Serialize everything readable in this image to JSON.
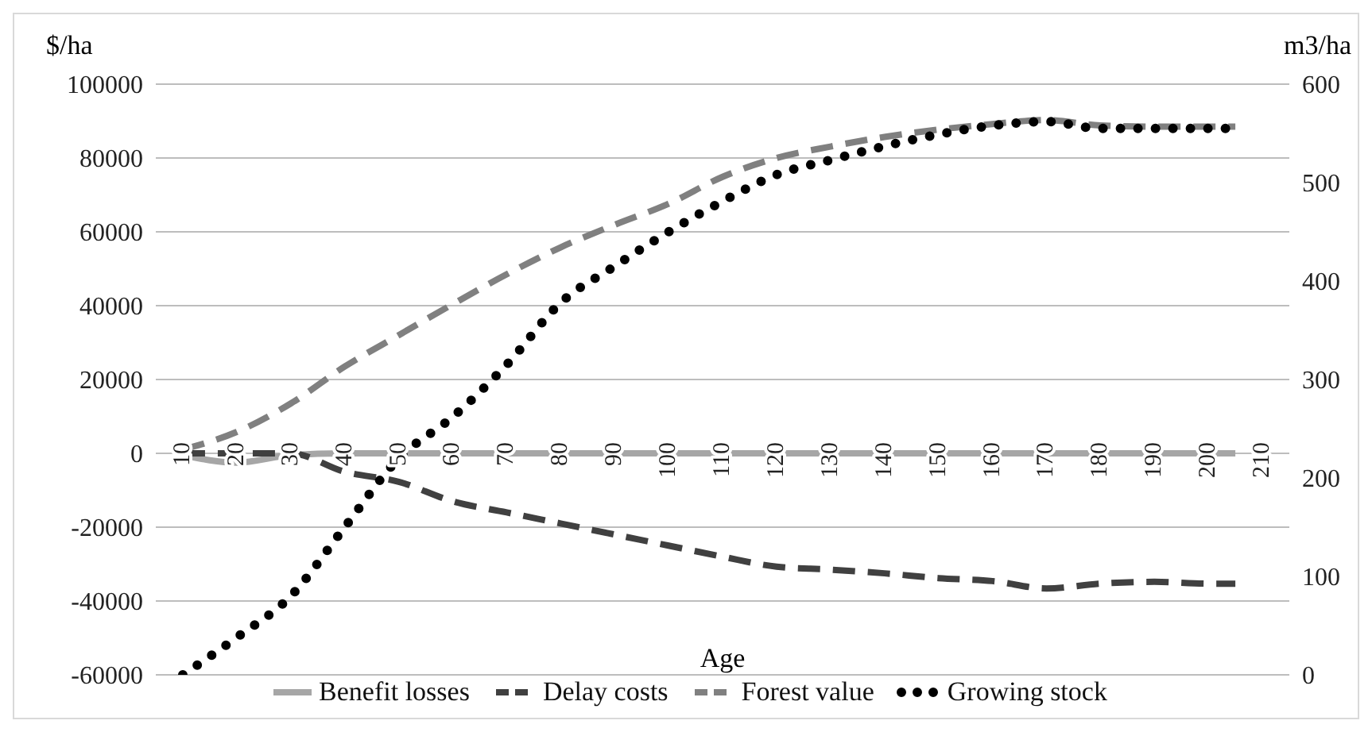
{
  "chart_data": {
    "type": "line",
    "xlabel": "Age",
    "ylabel": "$/ha",
    "y2label": "m3/ha",
    "x": [
      10,
      20,
      30,
      40,
      50,
      60,
      70,
      80,
      90,
      100,
      110,
      120,
      130,
      140,
      150,
      160,
      170,
      180,
      190,
      200,
      205
    ],
    "xlim": [
      5,
      215
    ],
    "xticks": [
      10,
      20,
      30,
      40,
      50,
      60,
      70,
      80,
      90,
      100,
      110,
      120,
      130,
      140,
      150,
      160,
      170,
      180,
      190,
      200,
      210
    ],
    "ylim": [
      -60000,
      100000
    ],
    "yticks": [
      -60000,
      -40000,
      -20000,
      0,
      20000,
      40000,
      60000,
      80000,
      100000
    ],
    "y2lim": [
      0,
      600
    ],
    "y2ticks": [
      0,
      100,
      200,
      300,
      400,
      500,
      600
    ],
    "grid": "y",
    "legend": "bottom",
    "marker": "none",
    "series": [
      {
        "name": "Benefit losses",
        "color": "#a6a6a6",
        "line_style": "solid",
        "values": [
          -500,
          -2500,
          -500,
          0,
          0,
          0,
          0,
          0,
          0,
          0,
          0,
          0,
          0,
          0,
          0,
          0,
          0,
          0,
          0,
          0,
          0
        ]
      },
      {
        "name": "Delay costs",
        "color": "#404040",
        "line_style": "dashed",
        "values": [
          0,
          0,
          0,
          -5000,
          -7700,
          -13000,
          -16000,
          -19000,
          -22000,
          -25000,
          -28000,
          -30700,
          -31500,
          -32500,
          -33800,
          -34600,
          -36600,
          -35300,
          -34800,
          -35300,
          -35300
        ]
      },
      {
        "name": "Forest value",
        "color": "#808080",
        "line_style": "dashed",
        "values": [
          1000,
          5800,
          13500,
          23500,
          32000,
          40400,
          48500,
          55800,
          61900,
          67600,
          74900,
          80000,
          83100,
          85700,
          87700,
          89200,
          90300,
          88800,
          88500,
          88500,
          88500
        ]
      },
      {
        "name": "Growing stock",
        "color": "#000000",
        "line_style": "dotted",
        "axis": "y2",
        "values": [
          0,
          38,
          80,
          150,
          220,
          262,
          315,
          378,
          415,
          450,
          481,
          508,
          523,
          537,
          549,
          558,
          562,
          555,
          555,
          555,
          555
        ]
      }
    ]
  }
}
